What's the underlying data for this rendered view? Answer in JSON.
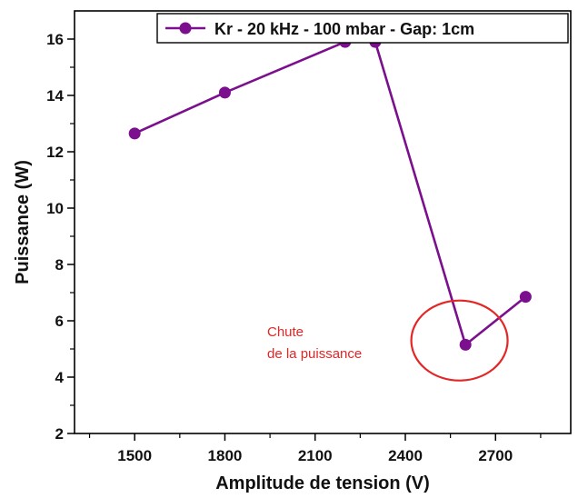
{
  "chart_data": {
    "type": "line",
    "xlabel": "Amplitude de tension (V)",
    "ylabel": "Puissance (W)",
    "xlim": [
      1300,
      2950
    ],
    "ylim": [
      2,
      17
    ],
    "xticks": [
      1500,
      1800,
      2100,
      2400,
      2700
    ],
    "yticks": [
      2,
      4,
      6,
      8,
      10,
      12,
      14,
      16
    ],
    "grid": false,
    "legend_position": "top-right",
    "series": [
      {
        "name": "Kr - 20 kHz - 100 mbar - Gap: 1cm",
        "color": "#7b0f8e",
        "x": [
          1500,
          1800,
          2200,
          2300,
          2600,
          2800
        ],
        "y": [
          12.65,
          14.1,
          15.9,
          15.9,
          5.15,
          6.85
        ]
      }
    ],
    "annotations": [
      {
        "lines": [
          "Chute",
          "de la puissance"
        ],
        "color": "#e32626",
        "highlight_x": 2580,
        "highlight_y": 5.3
      }
    ]
  }
}
